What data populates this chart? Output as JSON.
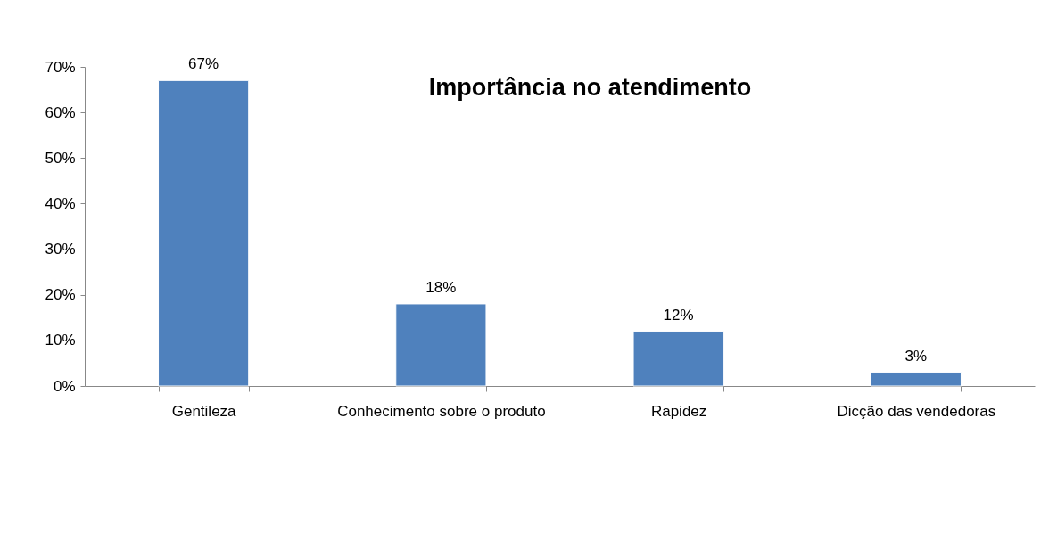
{
  "chart_data": {
    "type": "bar",
    "title": "Importância no atendimento",
    "categories": [
      "Gentileza",
      "Conhecimento sobre o produto",
      "Rapidez",
      "Dicção das vendedoras"
    ],
    "values": [
      67,
      18,
      12,
      3
    ],
    "value_labels": [
      "67%",
      "18%",
      "12%",
      "3%"
    ],
    "color": "#4f81bd",
    "ylim": [
      0,
      70
    ],
    "yticks": [
      {
        "value": 0,
        "label": "0%"
      },
      {
        "value": 10,
        "label": "10%"
      },
      {
        "value": 20,
        "label": "20%"
      },
      {
        "value": 30,
        "label": "30%"
      },
      {
        "value": 40,
        "label": "40%"
      },
      {
        "value": 50,
        "label": "50%"
      },
      {
        "value": 60,
        "label": "60%"
      },
      {
        "value": 70,
        "label": "70%"
      }
    ],
    "grid": false
  }
}
